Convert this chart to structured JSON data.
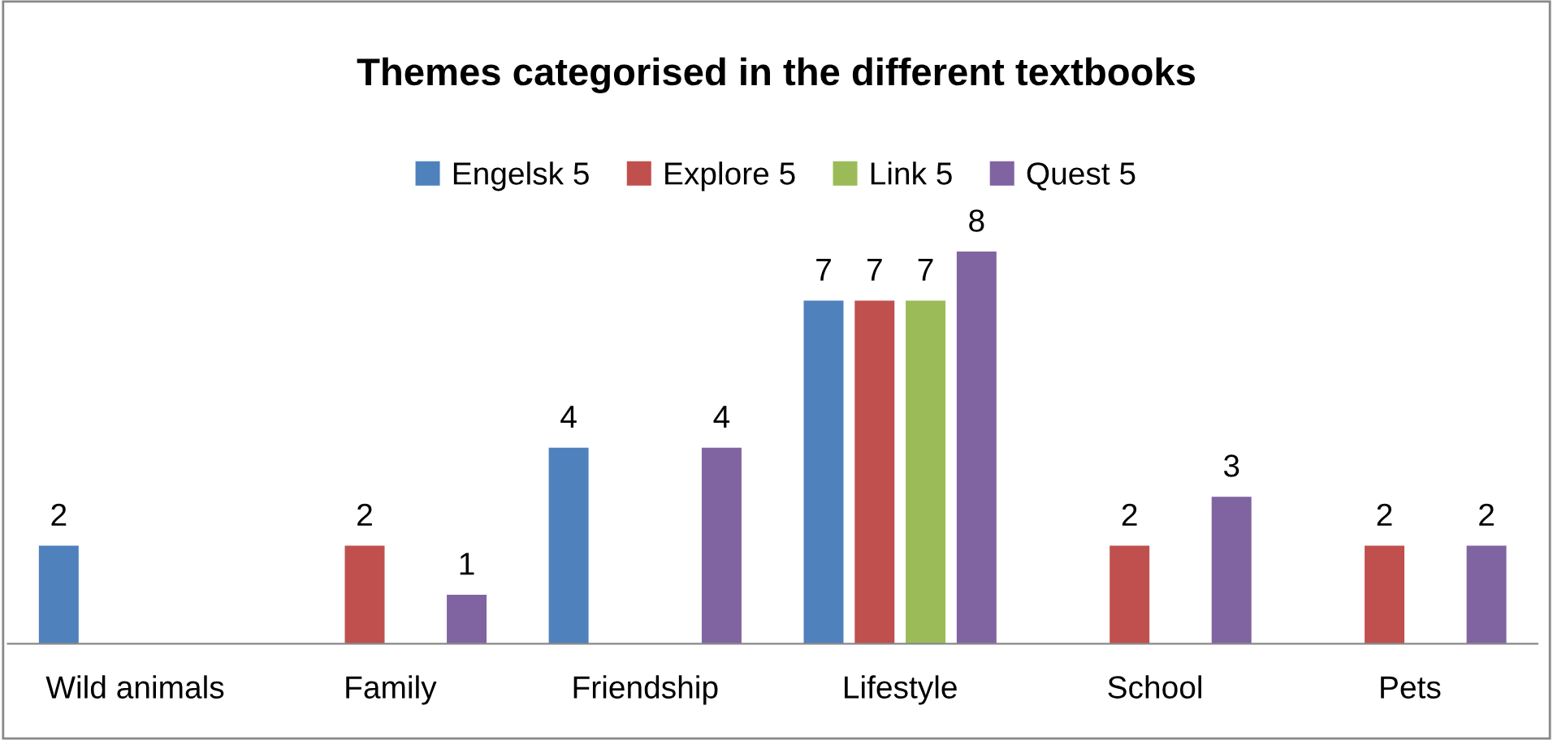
{
  "chart_data": {
    "type": "bar",
    "title": "Themes categorised in the different textbooks",
    "categories": [
      "Wild animals",
      "Family",
      "Friendship",
      "Lifestyle",
      "School",
      "Pets"
    ],
    "series": [
      {
        "name": "Engelsk 5",
        "color": "#4f81bd",
        "values": [
          2,
          null,
          4,
          7,
          null,
          null
        ]
      },
      {
        "name": "Explore 5",
        "color": "#c0504d",
        "values": [
          null,
          2,
          null,
          7,
          2,
          2
        ]
      },
      {
        "name": "Link 5",
        "color": "#9bbb59",
        "values": [
          null,
          null,
          null,
          7,
          null,
          null
        ]
      },
      {
        "name": "Quest 5",
        "color": "#8064a2",
        "values": [
          null,
          1,
          4,
          8,
          3,
          2
        ]
      }
    ],
    "data_labels": true,
    "legend": "top",
    "grid": false
  }
}
